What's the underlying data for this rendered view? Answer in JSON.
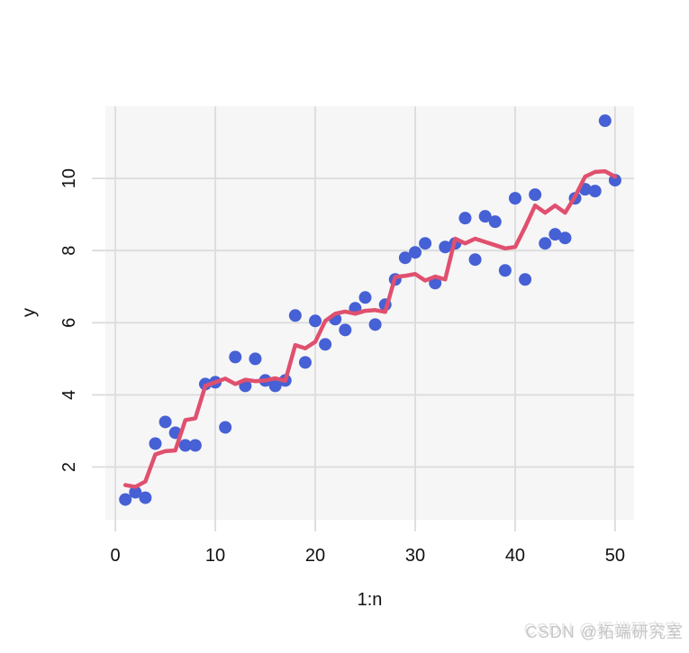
{
  "watermark": {
    "text": "CSDN @拓端研究室"
  },
  "chart_data": {
    "type": "scatter",
    "title": "",
    "xlabel": "1:n",
    "ylabel": "y",
    "x_ticks": [
      "0",
      "10",
      "20",
      "30",
      "40",
      "50"
    ],
    "y_ticks": [
      "2",
      "4",
      "6",
      "8",
      "10"
    ],
    "xlim": [
      -1.0,
      51.9
    ],
    "ylim": [
      0.54,
      12.0
    ],
    "grid": true,
    "legend": "none",
    "panel_bg": "#f6f6f6",
    "grid_color": "#dcdcdc",
    "x": [
      1,
      2,
      3,
      4,
      5,
      6,
      7,
      8,
      9,
      10,
      11,
      12,
      13,
      14,
      15,
      16,
      17,
      18,
      19,
      20,
      21,
      22,
      23,
      24,
      25,
      26,
      27,
      28,
      29,
      30,
      31,
      32,
      33,
      34,
      35,
      36,
      37,
      38,
      39,
      40,
      41,
      42,
      43,
      44,
      45,
      46,
      47,
      48,
      49,
      50
    ],
    "series": [
      {
        "name": "observations",
        "render": "points",
        "color": "#4660d5",
        "values": [
          1.1,
          1.3,
          1.15,
          2.65,
          3.25,
          2.95,
          2.6,
          2.6,
          4.3,
          4.35,
          3.1,
          5.05,
          4.25,
          5.0,
          4.4,
          4.25,
          4.4,
          6.2,
          4.9,
          6.05,
          5.4,
          6.1,
          5.8,
          6.4,
          6.7,
          5.95,
          6.5,
          7.2,
          7.8,
          7.95,
          8.2,
          7.1,
          8.1,
          8.2,
          8.9,
          7.75,
          8.95,
          8.8,
          7.45,
          9.45,
          7.2,
          9.55,
          8.2,
          8.45,
          8.35,
          9.45,
          9.7,
          9.65,
          11.6,
          9.95
        ]
      },
      {
        "name": "smoother-line",
        "render": "line",
        "color": "#e0506e",
        "values": [
          1.5,
          1.45,
          1.6,
          2.35,
          2.44,
          2.46,
          3.3,
          3.35,
          4.25,
          4.35,
          4.45,
          4.3,
          4.42,
          4.38,
          4.4,
          4.46,
          4.39,
          5.38,
          5.29,
          5.47,
          6.05,
          6.25,
          6.31,
          6.25,
          6.33,
          6.35,
          6.3,
          7.27,
          7.3,
          7.35,
          7.17,
          7.28,
          7.2,
          8.33,
          8.2,
          8.33,
          8.24,
          8.15,
          8.06,
          8.1,
          8.65,
          9.25,
          9.05,
          9.25,
          9.05,
          9.5,
          10.05,
          10.18,
          10.2,
          10.05
        ]
      }
    ]
  }
}
